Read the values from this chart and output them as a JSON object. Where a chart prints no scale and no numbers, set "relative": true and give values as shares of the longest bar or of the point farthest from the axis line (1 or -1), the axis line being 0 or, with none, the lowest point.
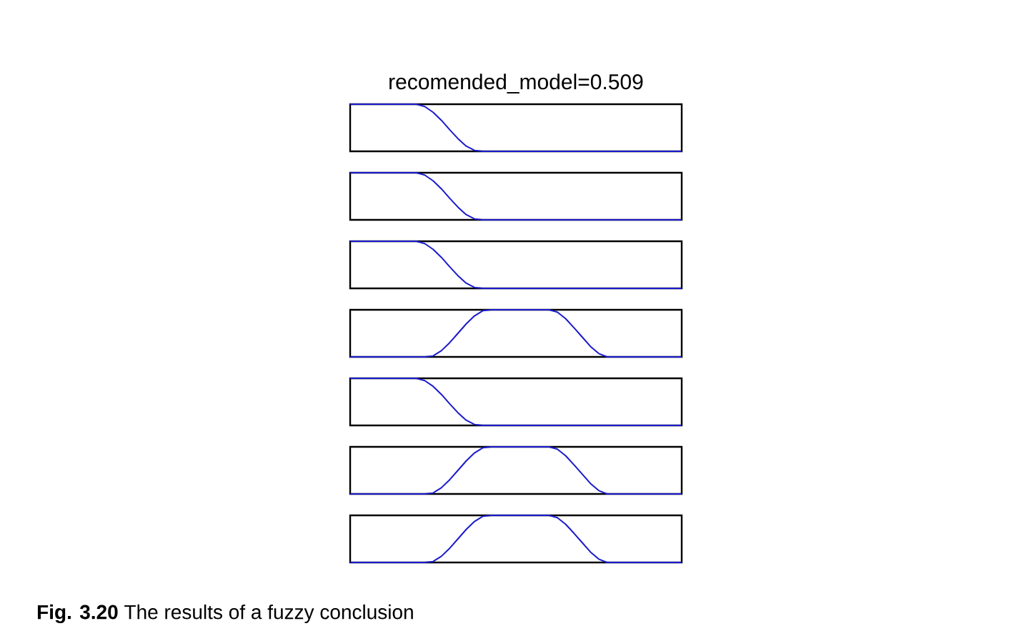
{
  "chart_data": [
    {
      "type": "line",
      "title": "recomended_model=0.509",
      "relative": true,
      "color": "#1a1acc",
      "categories": [
        null,
        null,
        null,
        null,
        null,
        null,
        null,
        null,
        null,
        null,
        null,
        null,
        null,
        null,
        null,
        null,
        null,
        null,
        null,
        null,
        null,
        null,
        null,
        null,
        null,
        null,
        null,
        null,
        null,
        null,
        null,
        null,
        null,
        null,
        null,
        null,
        null,
        null,
        null,
        null,
        null
      ],
      "values": [
        1,
        1,
        1,
        1,
        1,
        1,
        1,
        1,
        1,
        0.95,
        0.83,
        0.66,
        0.46,
        0.27,
        0.11,
        0.02,
        0,
        0,
        0,
        0,
        0,
        0,
        0,
        0,
        0,
        0,
        0,
        0,
        0,
        0,
        0,
        0,
        0,
        0,
        0,
        0,
        0,
        0,
        0,
        0,
        0
      ]
    },
    {
      "type": "line",
      "relative": true,
      "color": "#1a1acc",
      "categories": [
        null,
        null,
        null,
        null,
        null,
        null,
        null,
        null,
        null,
        null,
        null,
        null,
        null,
        null,
        null,
        null,
        null,
        null,
        null,
        null,
        null,
        null,
        null,
        null,
        null,
        null,
        null,
        null,
        null,
        null,
        null,
        null,
        null,
        null,
        null,
        null,
        null,
        null,
        null,
        null,
        null
      ],
      "values": [
        1,
        1,
        1,
        1,
        1,
        1,
        1,
        1,
        1,
        0.95,
        0.83,
        0.66,
        0.46,
        0.27,
        0.11,
        0.02,
        0,
        0,
        0,
        0,
        0,
        0,
        0,
        0,
        0,
        0,
        0,
        0,
        0,
        0,
        0,
        0,
        0,
        0,
        0,
        0,
        0,
        0,
        0,
        0,
        0
      ]
    },
    {
      "type": "line",
      "relative": true,
      "color": "#1a1acc",
      "categories": [
        null,
        null,
        null,
        null,
        null,
        null,
        null,
        null,
        null,
        null,
        null,
        null,
        null,
        null,
        null,
        null,
        null,
        null,
        null,
        null,
        null,
        null,
        null,
        null,
        null,
        null,
        null,
        null,
        null,
        null,
        null,
        null,
        null,
        null,
        null,
        null,
        null,
        null,
        null,
        null,
        null
      ],
      "values": [
        1,
        1,
        1,
        1,
        1,
        1,
        1,
        1,
        1,
        0.95,
        0.83,
        0.66,
        0.46,
        0.27,
        0.11,
        0.02,
        0,
        0,
        0,
        0,
        0,
        0,
        0,
        0,
        0,
        0,
        0,
        0,
        0,
        0,
        0,
        0,
        0,
        0,
        0,
        0,
        0,
        0,
        0,
        0,
        0
      ]
    },
    {
      "type": "line",
      "relative": true,
      "color": "#1a1acc",
      "categories": [
        null,
        null,
        null,
        null,
        null,
        null,
        null,
        null,
        null,
        null,
        null,
        null,
        null,
        null,
        null,
        null,
        null,
        null,
        null,
        null,
        null,
        null,
        null,
        null,
        null,
        null,
        null,
        null,
        null,
        null,
        null,
        null,
        null,
        null,
        null,
        null,
        null,
        null,
        null,
        null,
        null
      ],
      "values": [
        0,
        0,
        0,
        0,
        0,
        0,
        0,
        0,
        0,
        0,
        0.02,
        0.13,
        0.3,
        0.5,
        0.7,
        0.87,
        0.98,
        1,
        1,
        1,
        1,
        1,
        1,
        1,
        1,
        0.95,
        0.81,
        0.62,
        0.42,
        0.22,
        0.07,
        0,
        0,
        0,
        0,
        0,
        0,
        0,
        0,
        0,
        0
      ]
    },
    {
      "type": "line",
      "relative": true,
      "color": "#1a1acc",
      "categories": [
        null,
        null,
        null,
        null,
        null,
        null,
        null,
        null,
        null,
        null,
        null,
        null,
        null,
        null,
        null,
        null,
        null,
        null,
        null,
        null,
        null,
        null,
        null,
        null,
        null,
        null,
        null,
        null,
        null,
        null,
        null,
        null,
        null,
        null,
        null,
        null,
        null,
        null,
        null,
        null,
        null
      ],
      "values": [
        1,
        1,
        1,
        1,
        1,
        1,
        1,
        1,
        1,
        0.95,
        0.83,
        0.66,
        0.46,
        0.27,
        0.11,
        0.02,
        0,
        0,
        0,
        0,
        0,
        0,
        0,
        0,
        0,
        0,
        0,
        0,
        0,
        0,
        0,
        0,
        0,
        0,
        0,
        0,
        0,
        0,
        0,
        0,
        0
      ]
    },
    {
      "type": "line",
      "relative": true,
      "color": "#1a1acc",
      "categories": [
        null,
        null,
        null,
        null,
        null,
        null,
        null,
        null,
        null,
        null,
        null,
        null,
        null,
        null,
        null,
        null,
        null,
        null,
        null,
        null,
        null,
        null,
        null,
        null,
        null,
        null,
        null,
        null,
        null,
        null,
        null,
        null,
        null,
        null,
        null,
        null,
        null,
        null,
        null,
        null,
        null
      ],
      "values": [
        0,
        0,
        0,
        0,
        0,
        0,
        0,
        0,
        0,
        0,
        0.02,
        0.13,
        0.3,
        0.5,
        0.7,
        0.87,
        0.98,
        1,
        1,
        1,
        1,
        1,
        1,
        1,
        1,
        0.95,
        0.81,
        0.62,
        0.42,
        0.22,
        0.07,
        0,
        0,
        0,
        0,
        0,
        0,
        0,
        0,
        0,
        0
      ]
    },
    {
      "type": "line",
      "relative": true,
      "color": "#1a1acc",
      "annotations": [
        "**Fig. 3.20** The results of a fuzzy conclusion"
      ],
      "categories": [
        null,
        null,
        null,
        null,
        null,
        null,
        null,
        null,
        null,
        null,
        null,
        null,
        null,
        null,
        null,
        null,
        null,
        null,
        null,
        null,
        null,
        null,
        null,
        null,
        null,
        null,
        null,
        null,
        null,
        null,
        null,
        null,
        null,
        null,
        null,
        null,
        null,
        null,
        null,
        null,
        null
      ],
      "values": [
        0,
        0,
        0,
        0,
        0,
        0,
        0,
        0,
        0,
        0,
        0.02,
        0.13,
        0.3,
        0.5,
        0.7,
        0.87,
        0.98,
        1,
        1,
        1,
        1,
        1,
        1,
        1,
        1,
        0.95,
        0.81,
        0.62,
        0.42,
        0.22,
        0.07,
        0,
        0,
        0,
        0,
        0,
        0,
        0,
        0,
        0,
        0
      ]
    }
  ]
}
